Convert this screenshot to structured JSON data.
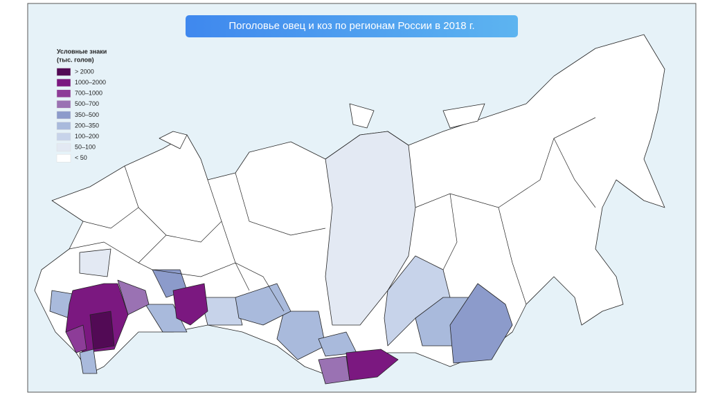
{
  "title": "Поголовье овец и коз по регионам России в 2018 г.",
  "legend": {
    "title": [
      "Условные знаки",
      "(тыс. голов)"
    ],
    "items": [
      {
        "label": "> 2000",
        "color": "#520a55"
      },
      {
        "label": "1000–2000",
        "color": "#7b1880"
      },
      {
        "label": "700–1000",
        "color": "#8d3c98"
      },
      {
        "label": "500–700",
        "color": "#9a72b3"
      },
      {
        "label": "350–500",
        "color": "#8c9bcb"
      },
      {
        "label": "200–350",
        "color": "#a9badc"
      },
      {
        "label": "100–200",
        "color": "#c7d3ea"
      },
      {
        "label": "50–100",
        "color": "#e3e9f3"
      },
      {
        "label": "< 50",
        "color": "#ffffff"
      }
    ]
  }
}
